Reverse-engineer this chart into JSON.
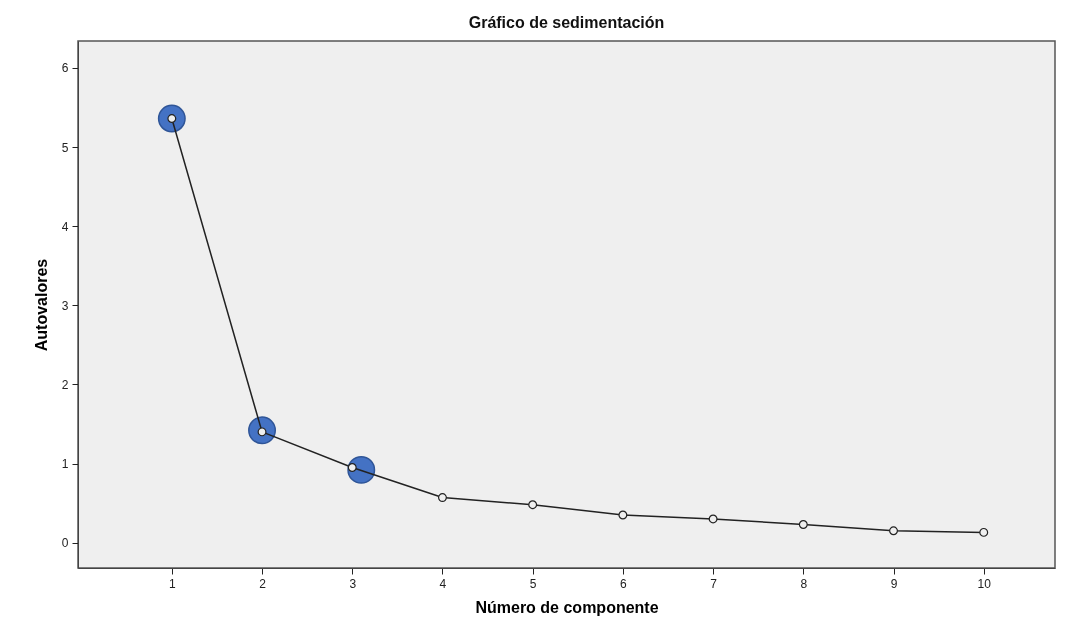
{
  "chart_data": {
    "type": "line",
    "title": "Gráfico de sedimentación",
    "xlabel": "Número de componente",
    "ylabel": "Autovalores",
    "xlim": [
      -0.04,
      10.79
    ],
    "xticks": [
      1,
      2,
      3,
      4,
      5,
      6,
      7,
      8,
      9,
      10
    ],
    "ylim": [
      -0.32,
      6.34
    ],
    "yticks": [
      0,
      1,
      2,
      3,
      4,
      5,
      6
    ],
    "grid": false,
    "marker": "circle",
    "line_style": "solid",
    "series": [
      {
        "color": "#222222",
        "x": [
          1,
          2,
          3,
          4,
          5,
          6,
          7,
          8,
          9,
          10
        ],
        "values": [
          5.36,
          1.4,
          0.95,
          0.57,
          0.48,
          0.35,
          0.3,
          0.23,
          0.15,
          0.13
        ]
      },
      {
        "type": "scatter",
        "color": "#4472c4",
        "x": [
          1,
          2,
          3.1
        ],
        "values": [
          5.36,
          1.42,
          0.92
        ]
      }
    ]
  }
}
